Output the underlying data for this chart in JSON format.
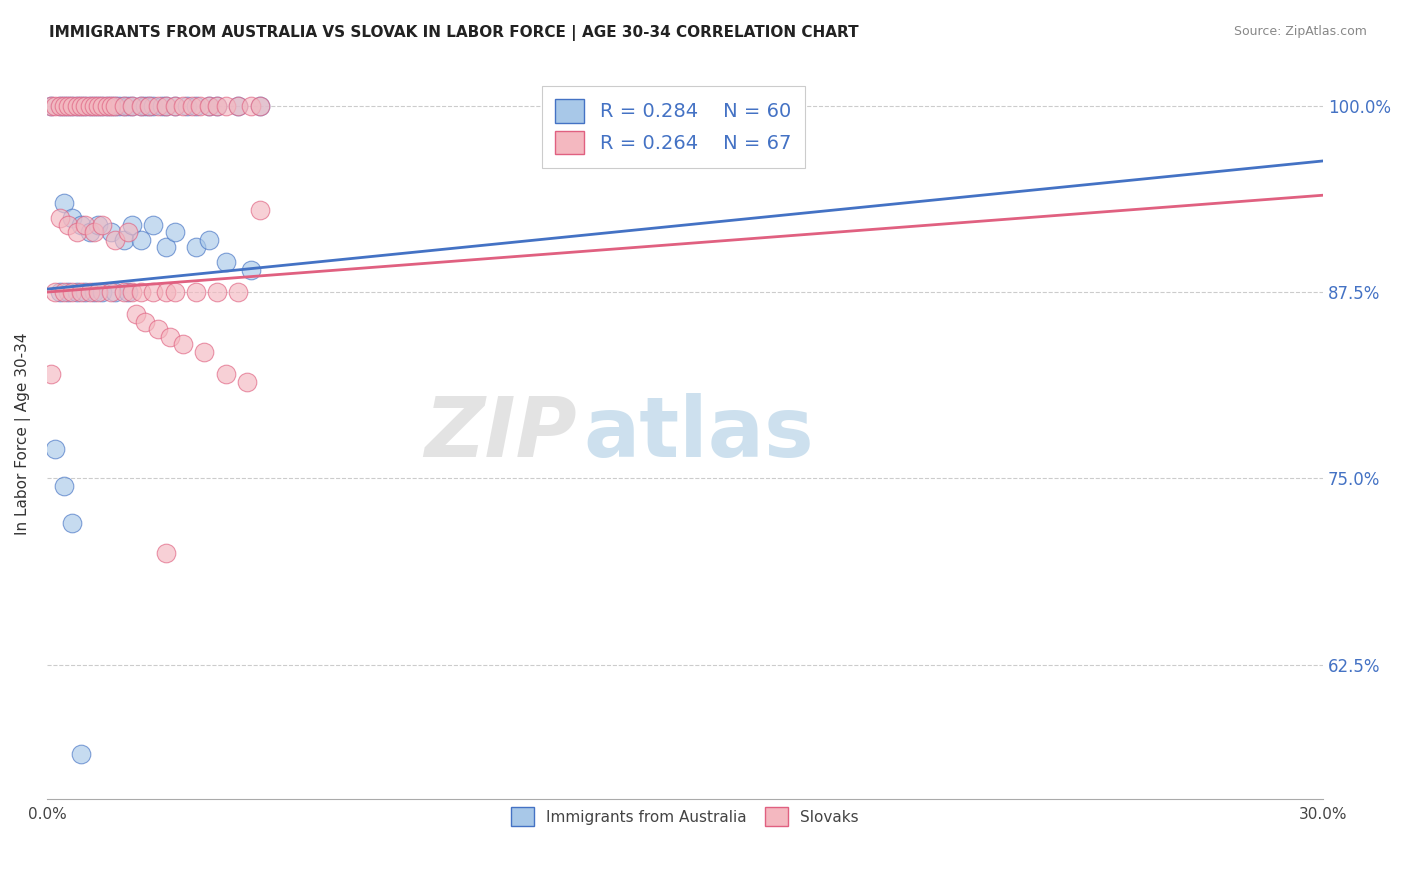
{
  "title": "IMMIGRANTS FROM AUSTRALIA VS SLOVAK IN LABOR FORCE | AGE 30-34 CORRELATION CHART",
  "source": "Source: ZipAtlas.com",
  "ylabel": "In Labor Force | Age 30-34",
  "ytick_labels": [
    "62.5%",
    "75.0%",
    "87.5%",
    "100.0%"
  ],
  "ytick_values": [
    0.625,
    0.75,
    0.875,
    1.0
  ],
  "legend_label1": "Immigrants from Australia",
  "legend_label2": "Slovaks",
  "r1": 0.284,
  "n1": 60,
  "r2": 0.264,
  "n2": 67,
  "color_blue": "#a8c8e8",
  "color_pink": "#f4b8c0",
  "line_color_blue": "#4472c4",
  "line_color_pink": "#e06080",
  "background_color": "#ffffff",
  "watermark_zip": "ZIP",
  "watermark_atlas": "atlas",
  "blue_x": [
    0.001,
    0.003,
    0.004,
    0.005,
    0.006,
    0.007,
    0.008,
    0.009,
    0.01,
    0.011,
    0.012,
    0.013,
    0.014,
    0.015,
    0.016,
    0.017,
    0.018,
    0.019,
    0.02,
    0.022,
    0.023,
    0.024,
    0.025,
    0.027,
    0.028,
    0.03,
    0.033,
    0.035,
    0.038,
    0.04,
    0.045,
    0.05,
    0.004,
    0.006,
    0.008,
    0.01,
    0.012,
    0.015,
    0.018,
    0.02,
    0.022,
    0.025,
    0.028,
    0.03,
    0.035,
    0.038,
    0.042,
    0.048,
    0.003,
    0.005,
    0.007,
    0.009,
    0.011,
    0.013,
    0.016,
    0.019,
    0.002,
    0.004,
    0.006,
    0.008
  ],
  "blue_y": [
    1.0,
    1.0,
    1.0,
    1.0,
    1.0,
    1.0,
    1.0,
    1.0,
    1.0,
    1.0,
    1.0,
    1.0,
    1.0,
    1.0,
    1.0,
    1.0,
    1.0,
    1.0,
    1.0,
    1.0,
    1.0,
    1.0,
    1.0,
    1.0,
    1.0,
    1.0,
    1.0,
    1.0,
    1.0,
    1.0,
    1.0,
    1.0,
    0.935,
    0.925,
    0.92,
    0.915,
    0.92,
    0.915,
    0.91,
    0.92,
    0.91,
    0.92,
    0.905,
    0.915,
    0.905,
    0.91,
    0.895,
    0.89,
    0.875,
    0.875,
    0.875,
    0.875,
    0.875,
    0.875,
    0.875,
    0.875,
    0.77,
    0.745,
    0.72,
    0.565
  ],
  "pink_x": [
    0.001,
    0.002,
    0.003,
    0.004,
    0.005,
    0.006,
    0.007,
    0.008,
    0.009,
    0.01,
    0.011,
    0.012,
    0.013,
    0.014,
    0.015,
    0.016,
    0.018,
    0.02,
    0.022,
    0.024,
    0.026,
    0.028,
    0.03,
    0.032,
    0.034,
    0.036,
    0.038,
    0.04,
    0.042,
    0.045,
    0.048,
    0.05,
    0.002,
    0.004,
    0.006,
    0.008,
    0.01,
    0.012,
    0.015,
    0.018,
    0.02,
    0.022,
    0.025,
    0.028,
    0.03,
    0.035,
    0.04,
    0.045,
    0.003,
    0.005,
    0.007,
    0.009,
    0.011,
    0.013,
    0.016,
    0.019,
    0.021,
    0.023,
    0.026,
    0.029,
    0.032,
    0.037,
    0.042,
    0.047,
    0.001,
    0.05,
    0.028
  ],
  "pink_y": [
    1.0,
    1.0,
    1.0,
    1.0,
    1.0,
    1.0,
    1.0,
    1.0,
    1.0,
    1.0,
    1.0,
    1.0,
    1.0,
    1.0,
    1.0,
    1.0,
    1.0,
    1.0,
    1.0,
    1.0,
    1.0,
    1.0,
    1.0,
    1.0,
    1.0,
    1.0,
    1.0,
    1.0,
    1.0,
    1.0,
    1.0,
    1.0,
    0.875,
    0.875,
    0.875,
    0.875,
    0.875,
    0.875,
    0.875,
    0.875,
    0.875,
    0.875,
    0.875,
    0.875,
    0.875,
    0.875,
    0.875,
    0.875,
    0.925,
    0.92,
    0.915,
    0.92,
    0.915,
    0.92,
    0.91,
    0.915,
    0.86,
    0.855,
    0.85,
    0.845,
    0.84,
    0.835,
    0.82,
    0.815,
    0.82,
    0.93,
    0.7
  ],
  "blue_trend_x": [
    0.0,
    0.3
  ],
  "blue_trend_y": [
    0.877,
    0.963
  ],
  "pink_trend_x": [
    0.0,
    0.3
  ],
  "pink_trend_y": [
    0.875,
    0.94
  ],
  "xlim": [
    0.0,
    0.3
  ],
  "ylim": [
    0.535,
    1.025
  ]
}
